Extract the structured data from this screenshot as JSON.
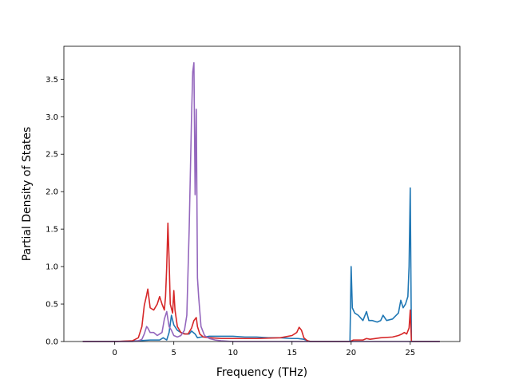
{
  "chart_data": {
    "type": "line",
    "xlabel": "Frequency (THz)",
    "ylabel": "Partial Density of States",
    "xlim": [
      -4.3,
      29.2
    ],
    "ylim": [
      0,
      3.94
    ],
    "xticks": [
      0,
      5,
      10,
      15,
      20,
      25
    ],
    "yticks": [
      0.0,
      0.5,
      1.0,
      1.5,
      2.0,
      2.5,
      3.0,
      3.5
    ],
    "xtick_labels": [
      "0",
      "5",
      "10",
      "15",
      "20",
      "25"
    ],
    "ytick_labels": [
      "0.0",
      "0.5",
      "1.0",
      "1.5",
      "2.0",
      "2.5",
      "3.0",
      "3.5"
    ],
    "grid": false,
    "legend": "none",
    "series": [
      {
        "color": "#1f77b4",
        "x": [
          -2.7,
          0.0,
          2.0,
          3.0,
          3.8,
          4.1,
          4.4,
          4.6,
          4.8,
          5.0,
          5.3,
          5.6,
          6.0,
          6.3,
          6.5,
          6.8,
          7.0,
          7.3,
          7.6,
          8.0,
          9.0,
          10.0,
          11.0,
          12.0,
          13.0,
          14.0,
          15.0,
          15.5,
          16.0,
          16.5,
          17.0,
          19.9,
          20.0,
          20.1,
          20.3,
          20.6,
          21.0,
          21.3,
          21.5,
          21.8,
          22.2,
          22.5,
          22.7,
          23.0,
          23.5,
          24.0,
          24.2,
          24.4,
          24.6,
          24.8,
          24.9,
          25.0,
          25.1,
          27.5
        ],
        "y": [
          0.0,
          0.0,
          0.01,
          0.02,
          0.02,
          0.05,
          0.02,
          0.12,
          0.35,
          0.22,
          0.15,
          0.12,
          0.1,
          0.1,
          0.14,
          0.1,
          0.05,
          0.06,
          0.06,
          0.07,
          0.07,
          0.07,
          0.06,
          0.06,
          0.05,
          0.05,
          0.04,
          0.04,
          0.03,
          0.0,
          0.0,
          0.0,
          1.0,
          0.45,
          0.38,
          0.35,
          0.28,
          0.4,
          0.28,
          0.28,
          0.26,
          0.28,
          0.35,
          0.28,
          0.3,
          0.38,
          0.55,
          0.45,
          0.5,
          0.6,
          1.0,
          2.05,
          0.0,
          0.0
        ]
      },
      {
        "color": "#d62728",
        "x": [
          -2.7,
          0.0,
          1.5,
          2.0,
          2.3,
          2.5,
          2.7,
          2.8,
          3.0,
          3.3,
          3.6,
          3.8,
          4.0,
          4.2,
          4.3,
          4.4,
          4.5,
          4.6,
          4.7,
          4.9,
          5.0,
          5.1,
          5.3,
          5.6,
          5.9,
          6.2,
          6.5,
          6.7,
          6.9,
          7.0,
          7.2,
          7.5,
          8.0,
          9.0,
          10.0,
          12.0,
          14.0,
          15.0,
          15.4,
          15.6,
          15.8,
          16.0,
          16.3,
          16.6,
          17.0,
          19.9,
          20.2,
          21.0,
          21.3,
          21.6,
          22.5,
          23.5,
          24.0,
          24.3,
          24.5,
          24.7,
          24.9,
          25.0,
          25.1,
          27.5
        ],
        "y": [
          0.0,
          0.0,
          0.01,
          0.05,
          0.2,
          0.48,
          0.62,
          0.7,
          0.45,
          0.42,
          0.5,
          0.6,
          0.5,
          0.42,
          0.6,
          1.0,
          1.58,
          1.1,
          0.5,
          0.38,
          0.68,
          0.42,
          0.2,
          0.12,
          0.1,
          0.1,
          0.18,
          0.28,
          0.32,
          0.2,
          0.1,
          0.06,
          0.05,
          0.04,
          0.04,
          0.04,
          0.05,
          0.08,
          0.12,
          0.19,
          0.15,
          0.05,
          0.01,
          0.0,
          0.0,
          0.0,
          0.02,
          0.02,
          0.04,
          0.03,
          0.05,
          0.06,
          0.08,
          0.1,
          0.12,
          0.1,
          0.18,
          0.42,
          0.0,
          0.0
        ]
      },
      {
        "color": "#9467bd",
        "x": [
          -2.7,
          0.0,
          1.5,
          2.0,
          2.3,
          2.5,
          2.7,
          2.8,
          3.0,
          3.3,
          3.6,
          3.8,
          4.0,
          4.2,
          4.4,
          4.6,
          4.8,
          5.0,
          5.3,
          5.6,
          5.9,
          6.1,
          6.3,
          6.5,
          6.6,
          6.7,
          6.8,
          6.9,
          6.95,
          7.0,
          7.1,
          7.3,
          7.6,
          8.0,
          8.5,
          9.0,
          10.0,
          11.0,
          12.0,
          13.0,
          27.5
        ],
        "y": [
          0.0,
          0.0,
          0.0,
          0.01,
          0.03,
          0.1,
          0.2,
          0.18,
          0.12,
          0.12,
          0.08,
          0.1,
          0.12,
          0.3,
          0.4,
          0.2,
          0.15,
          0.08,
          0.06,
          0.08,
          0.15,
          0.35,
          1.5,
          3.0,
          3.6,
          3.72,
          1.96,
          3.1,
          2.0,
          0.85,
          0.6,
          0.2,
          0.08,
          0.04,
          0.02,
          0.01,
          0.0,
          0.0,
          0.0,
          0.0,
          0.0
        ]
      }
    ]
  }
}
